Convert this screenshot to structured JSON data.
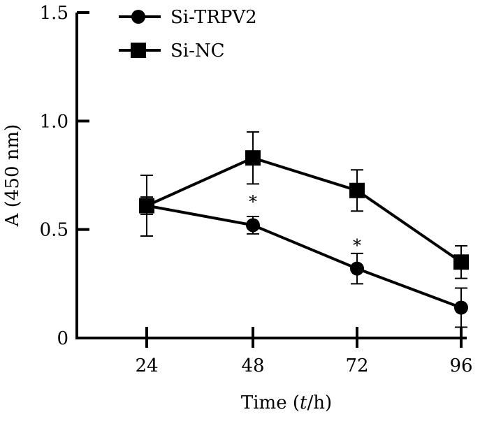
{
  "chart_data": {
    "type": "line",
    "title": "",
    "xlabel": "Time (t/h)",
    "xlabel_parts": {
      "pre": "Time (",
      "italic": "t",
      "post": "/h)"
    },
    "ylabel": "A (450 nm)",
    "x": [
      24,
      48,
      72,
      96
    ],
    "xticks": [
      "24",
      "48",
      "72",
      "96"
    ],
    "yticks": [
      "0",
      "0.5",
      "1.0",
      "1.5"
    ],
    "ylim": [
      0,
      1.5
    ],
    "grid": false,
    "legend_position": "top-left",
    "series": [
      {
        "name": "Si-TRPV2",
        "marker": "circle",
        "values": [
          0.61,
          0.52,
          0.32,
          0.14
        ],
        "errors": [
          0.04,
          0.04,
          0.07,
          0.09
        ]
      },
      {
        "name": "Si-NC",
        "marker": "square",
        "values": [
          0.61,
          0.83,
          0.68,
          0.35
        ],
        "errors": [
          0.14,
          0.12,
          0.095,
          0.075
        ]
      }
    ],
    "annotations": [
      {
        "text": "*",
        "x": 48,
        "y": 0.64
      },
      {
        "text": "*",
        "x": 72,
        "y": 0.44
      }
    ]
  }
}
